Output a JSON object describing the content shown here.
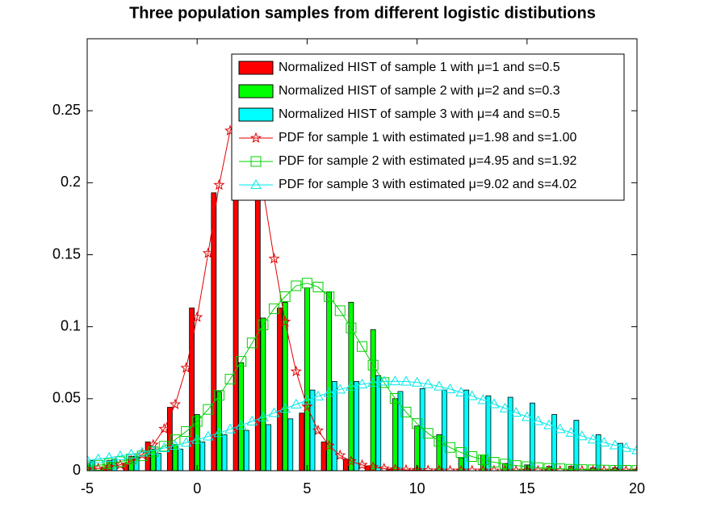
{
  "chart_data": {
    "type": "histogram-pdf",
    "title": "Three population samples from different logistic distibutions",
    "xlim": [
      -5,
      20
    ],
    "ylim": [
      0,
      0.3
    ],
    "xticks": [
      -5,
      0,
      5,
      10,
      15,
      20
    ],
    "yticks": [
      0,
      0.05,
      0.1,
      0.15,
      0.2,
      0.25
    ],
    "grid": false,
    "legend": "northeast",
    "series": [
      {
        "name": "Normalized HIST of sample 1 with μ=1 and s=0.5",
        "kind": "bar",
        "color": "#ff0000",
        "x": [
          -5,
          -4,
          -3,
          -2,
          -1,
          0,
          1,
          2,
          3,
          4,
          5,
          6,
          7,
          8,
          9,
          10,
          11,
          12,
          13,
          14,
          15,
          16,
          17,
          18,
          19,
          20
        ],
        "values": [
          0.001,
          0.002,
          0.005,
          0.02,
          0.044,
          0.113,
          0.193,
          0.24,
          0.22,
          0.113,
          0.04,
          0.02,
          0.008,
          0.003,
          0.001,
          0,
          0,
          0,
          0,
          0,
          0,
          0,
          0,
          0,
          0,
          0
        ]
      },
      {
        "name": "Normalized HIST of sample 2 with μ=2 and s=0.3",
        "kind": "bar",
        "color": "#00ff00",
        "x": [
          -5,
          -4,
          -3,
          -2,
          -1,
          0,
          1,
          2,
          3,
          4,
          5,
          6,
          7,
          8,
          9,
          10,
          11,
          12,
          13,
          14,
          15,
          16,
          17,
          18,
          19,
          20
        ],
        "values": [
          0.005,
          0.007,
          0.01,
          0.015,
          0.018,
          0.039,
          0.055,
          0.075,
          0.106,
          0.117,
          0.127,
          0.124,
          0.117,
          0.098,
          0.05,
          0.031,
          0.025,
          0.009,
          0.011,
          0.005,
          0.004,
          0.003,
          0.003,
          0.002,
          0.002,
          0.001
        ]
      },
      {
        "name": "Normalized HIST of sample 3 with μ=4 and s=0.5",
        "kind": "bar",
        "color": "#00ffff",
        "x": [
          -5,
          -4,
          -3,
          -2,
          -1,
          0,
          1,
          2,
          3,
          4,
          5,
          6,
          7,
          8,
          9,
          10,
          11,
          12,
          13,
          14,
          15,
          16,
          17,
          18,
          19,
          20
        ],
        "values": [
          0.007,
          0.008,
          0.01,
          0.012,
          0.015,
          0.02,
          0.025,
          0.028,
          0.032,
          0.036,
          0.056,
          0.062,
          0.062,
          0.066,
          0.055,
          0.057,
          0.056,
          0.056,
          0.052,
          0.051,
          0.047,
          0.039,
          0.035,
          0.025,
          0.019,
          0.015
        ]
      },
      {
        "name": "PDF for sample 1 with estimated μ=1.98 and s=1.00",
        "kind": "line",
        "marker": "star",
        "color": "#e00000",
        "x": [
          -5,
          -4.5,
          -4,
          -3.5,
          -3,
          -2.5,
          -2,
          -1.5,
          -1,
          -0.5,
          0,
          0.5,
          1,
          1.5,
          2,
          2.5,
          3,
          3.5,
          4,
          4.5,
          5,
          5.5,
          6,
          6.5,
          7,
          7.5,
          8,
          8.5,
          9,
          9.5,
          10,
          10.5,
          11,
          11.5,
          12,
          12.5,
          13,
          13.5,
          14,
          14.5,
          15,
          15.5,
          16,
          16.5,
          17,
          17.5,
          18,
          18.5,
          19,
          19.5,
          20
        ],
        "values": [
          0.00093,
          0.00153,
          0.00252,
          0.00414,
          0.00678,
          0.0111,
          0.018,
          0.029,
          0.046,
          0.0713,
          0.1066,
          0.151,
          0.1984,
          0.2361,
          0.25,
          0.2338,
          0.1948,
          0.1472,
          0.1034,
          0.0689,
          0.0444,
          0.0279,
          0.0173,
          0.0106,
          0.00652,
          0.00397,
          0.00242,
          0.00147,
          0.00089,
          0.00054,
          0.00033,
          0.0002,
          0.00012,
          7e-05,
          4e-05,
          3e-05,
          2e-05,
          1e-05,
          1e-05,
          0,
          0,
          0,
          0,
          0,
          0,
          0,
          0,
          0,
          0,
          0,
          0
        ]
      },
      {
        "name": "PDF for sample 2 with estimated μ=4.95 and s=1.92",
        "kind": "line",
        "marker": "square",
        "color": "#00d000",
        "x": [
          -5,
          -4.5,
          -4,
          -3.5,
          -3,
          -2.5,
          -2,
          -1.5,
          -1,
          -0.5,
          0,
          0.5,
          1,
          1.5,
          2,
          2.5,
          3,
          3.5,
          4,
          4.5,
          5,
          5.5,
          6,
          6.5,
          7,
          7.5,
          8,
          8.5,
          9,
          9.5,
          10,
          10.5,
          11,
          11.5,
          12,
          12.5,
          13,
          13.5,
          14,
          14.5,
          15,
          15.5,
          16,
          16.5,
          17,
          17.5,
          18,
          18.5,
          19,
          19.5,
          20
        ],
        "values": [
          0.0029,
          0.00374,
          0.00483,
          0.00624,
          0.00803,
          0.01032,
          0.01324,
          0.01693,
          0.02152,
          0.02722,
          0.03419,
          0.04252,
          0.05234,
          0.06359,
          0.07589,
          0.08875,
          0.1013,
          0.1125,
          0.1209,
          0.1284,
          0.1302,
          0.1276,
          0.1209,
          0.1111,
          0.0992,
          0.0862,
          0.0733,
          0.0612,
          0.0502,
          0.0407,
          0.0327,
          0.0259,
          0.0205,
          0.0161,
          0.0126,
          0.0098,
          0.0076,
          0.0059,
          0.0046,
          0.0036,
          0.0028,
          0.0021,
          0.0016,
          0.0013,
          0.001,
          0.0008,
          0.0006,
          0.0004,
          0.0003,
          0.0003,
          0.0002
        ]
      },
      {
        "name": "PDF for sample 3 with estimated μ=9.02 and s=4.02",
        "kind": "line",
        "marker": "triangle",
        "color": "#00e8e8",
        "x": [
          -5,
          -4.5,
          -4,
          -3.5,
          -3,
          -2.5,
          -2,
          -1.5,
          -1,
          -0.5,
          0,
          0.5,
          1,
          1.5,
          2,
          2.5,
          3,
          3.5,
          4,
          4.5,
          5,
          5.5,
          6,
          6.5,
          7,
          7.5,
          8,
          8.5,
          9,
          9.5,
          10,
          10.5,
          11,
          11.5,
          12,
          12.5,
          13,
          13.5,
          14,
          14.5,
          15,
          15.5,
          16,
          16.5,
          17,
          17.5,
          18,
          18.5,
          19,
          19.5,
          20
        ],
        "values": [
          0.00716,
          0.00805,
          0.00904,
          0.01013,
          0.01134,
          0.01266,
          0.01411,
          0.01569,
          0.01739,
          0.01948,
          0.02156,
          0.02383,
          0.02622,
          0.02877,
          0.03146,
          0.03426,
          0.03716,
          0.04012,
          0.04309,
          0.04605,
          0.04891,
          0.05166,
          0.05418,
          0.05646,
          0.05843,
          0.06002,
          0.0612,
          0.06193,
          0.06219,
          0.06197,
          0.06127,
          0.06011,
          0.05856,
          0.05662,
          0.05438,
          0.05184,
          0.04913,
          0.04628,
          0.04333,
          0.04036,
          0.03739,
          0.03449,
          0.03168,
          0.02897,
          0.02642,
          0.024,
          0.02171,
          0.01963,
          0.01769,
          0.0159,
          0.01427
        ]
      }
    ]
  }
}
